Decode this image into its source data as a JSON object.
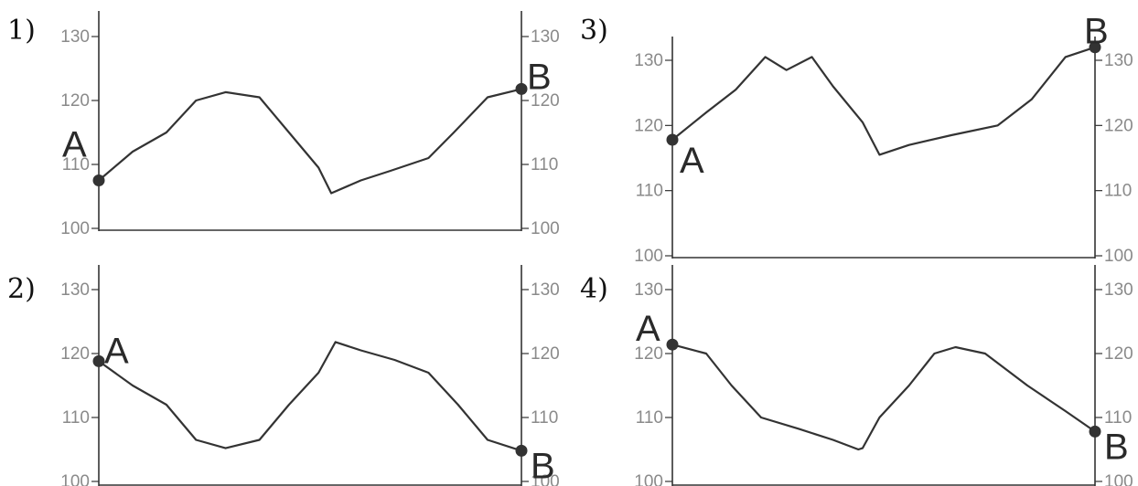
{
  "chart_data": [
    {
      "type": "line",
      "panel_label": "1)",
      "ylim": [
        100,
        130
      ],
      "yticks_left": [
        "130",
        "120",
        "110",
        "100"
      ],
      "yticks_right": [
        "130",
        "120",
        "110",
        "100"
      ],
      "start_label": "A",
      "end_label": "B",
      "points": [
        [
          0,
          107.5
        ],
        [
          0.08,
          112
        ],
        [
          0.16,
          115
        ],
        [
          0.23,
          120
        ],
        [
          0.3,
          121.3
        ],
        [
          0.38,
          120.5
        ],
        [
          0.45,
          115
        ],
        [
          0.52,
          109.5
        ],
        [
          0.55,
          105.5
        ],
        [
          0.62,
          107.5
        ],
        [
          0.69,
          109
        ],
        [
          0.78,
          111
        ],
        [
          0.84,
          115
        ],
        [
          0.92,
          120.5
        ],
        [
          1,
          121.8
        ]
      ]
    },
    {
      "type": "line",
      "panel_label": "2)",
      "ylim": [
        100,
        130
      ],
      "yticks_left": [
        "130",
        "120",
        "110",
        "100"
      ],
      "yticks_right": [
        "130",
        "120",
        "110",
        "100"
      ],
      "start_label": "A",
      "end_label": "B",
      "points": [
        [
          0,
          118.8
        ],
        [
          0.08,
          115
        ],
        [
          0.16,
          112
        ],
        [
          0.23,
          106.5
        ],
        [
          0.3,
          105.2
        ],
        [
          0.38,
          106.5
        ],
        [
          0.45,
          112
        ],
        [
          0.52,
          117
        ],
        [
          0.56,
          121.8
        ],
        [
          0.62,
          120.5
        ],
        [
          0.7,
          119
        ],
        [
          0.78,
          117
        ],
        [
          0.85,
          112
        ],
        [
          0.92,
          106.5
        ],
        [
          1,
          104.8
        ]
      ]
    },
    {
      "type": "line",
      "panel_label": "3)",
      "ylim": [
        100,
        130
      ],
      "yticks_left": [
        "130",
        "120",
        "110",
        "100"
      ],
      "yticks_right": [
        "130",
        "120",
        "110",
        "100"
      ],
      "start_label": "A",
      "end_label": "B",
      "points": [
        [
          0,
          117.8
        ],
        [
          0.08,
          122
        ],
        [
          0.15,
          125.5
        ],
        [
          0.22,
          130.5
        ],
        [
          0.27,
          128.5
        ],
        [
          0.33,
          130.5
        ],
        [
          0.38,
          126
        ],
        [
          0.45,
          120.5
        ],
        [
          0.49,
          115.5
        ],
        [
          0.56,
          117
        ],
        [
          0.66,
          118.5
        ],
        [
          0.77,
          120
        ],
        [
          0.85,
          124
        ],
        [
          0.93,
          130.5
        ],
        [
          1,
          132
        ]
      ]
    },
    {
      "type": "line",
      "panel_label": "4)",
      "ylim": [
        100,
        130
      ],
      "yticks_left": [
        "130",
        "120",
        "110",
        "100"
      ],
      "yticks_right": [
        "130",
        "120",
        "110",
        "100"
      ],
      "start_label": "A",
      "end_label": "B",
      "points": [
        [
          0,
          121.4
        ],
        [
          0.08,
          120
        ],
        [
          0.14,
          115
        ],
        [
          0.21,
          110
        ],
        [
          0.3,
          108.2
        ],
        [
          0.38,
          106.5
        ],
        [
          0.44,
          105
        ],
        [
          0.45,
          105.2
        ],
        [
          0.49,
          110
        ],
        [
          0.56,
          115
        ],
        [
          0.62,
          120
        ],
        [
          0.67,
          121
        ],
        [
          0.74,
          120
        ],
        [
          0.84,
          115
        ],
        [
          0.93,
          111
        ],
        [
          1,
          107.8
        ]
      ]
    }
  ]
}
